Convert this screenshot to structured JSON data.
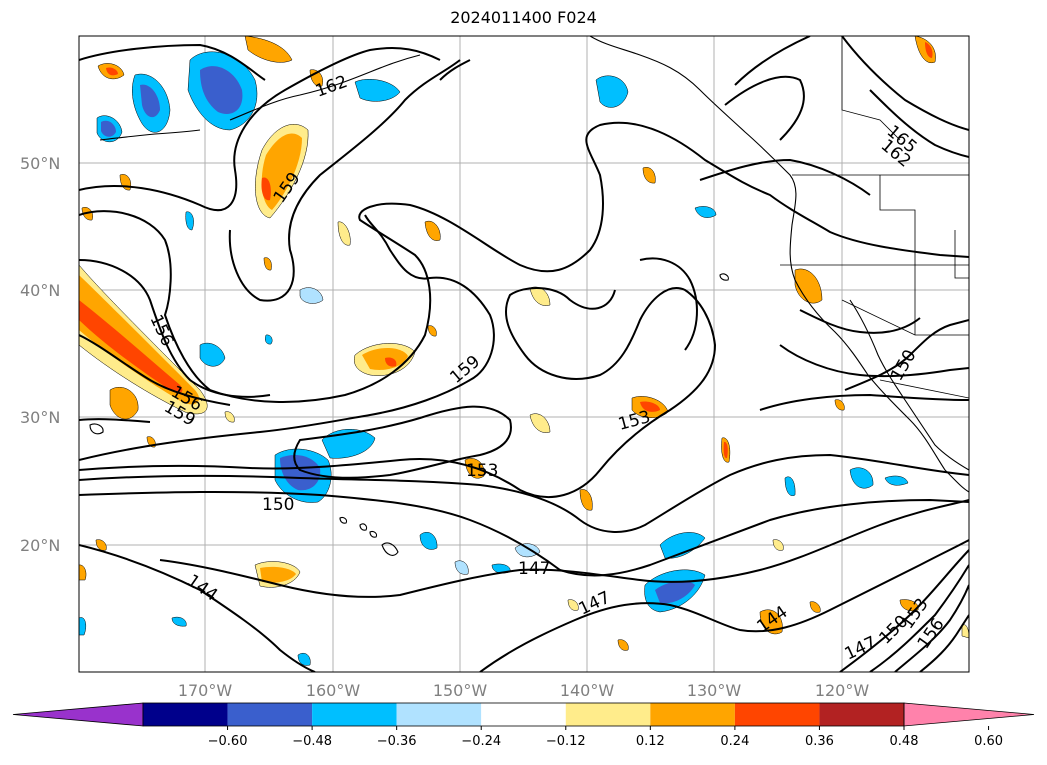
{
  "title": "2024011400 F024",
  "map": {
    "lat_labels": [
      "50°N",
      "40°N",
      "30°N",
      "20°N"
    ],
    "lon_labels": [
      "170°W",
      "160°W",
      "150°W",
      "140°W",
      "130°W",
      "120°W"
    ],
    "contour_labels": [
      {
        "text": "162"
      },
      {
        "text": "159"
      },
      {
        "text": "156"
      },
      {
        "text": "156"
      },
      {
        "text": "159"
      },
      {
        "text": "159"
      },
      {
        "text": "153"
      },
      {
        "text": "153"
      },
      {
        "text": "150"
      },
      {
        "text": "150"
      },
      {
        "text": "147"
      },
      {
        "text": "147"
      },
      {
        "text": "144"
      },
      {
        "text": "144"
      },
      {
        "text": "165"
      },
      {
        "text": "162"
      },
      {
        "text": "147"
      },
      {
        "text": "150"
      },
      {
        "text": "153"
      },
      {
        "text": "156"
      }
    ]
  },
  "colorbar": {
    "ticks": [
      "−0.60",
      "−0.48",
      "−0.36",
      "−0.24",
      "−0.12",
      "0.12",
      "0.24",
      "0.36",
      "0.48",
      "0.60"
    ],
    "colors": [
      "#9932cc",
      "#00008b",
      "#3a5fcd",
      "#00bfff",
      "#b0e2ff",
      "#ffffff",
      "#ffec8b",
      "#ffa500",
      "#ff4500",
      "#b22222",
      "#ff82ab"
    ]
  }
}
